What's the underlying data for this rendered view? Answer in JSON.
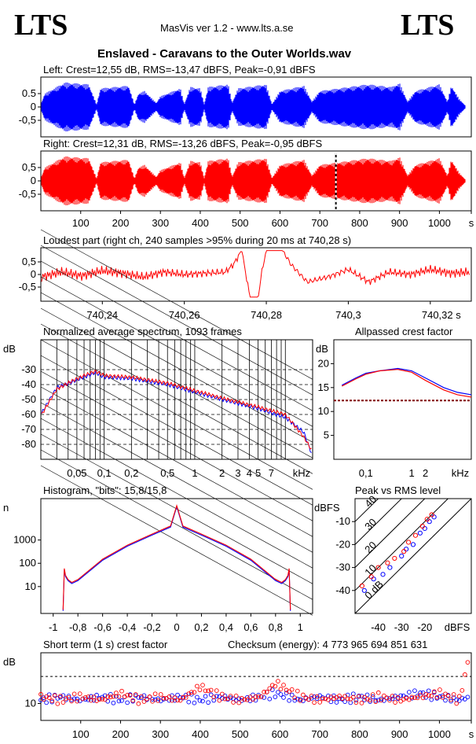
{
  "header": {
    "logo_left": "LTS",
    "logo_right": "LTS",
    "app_version": "MasVis ver 1.2 - www.lts.a.se",
    "file_title": "Enslaved - Caravans to the Outer Worlds.wav"
  },
  "colors": {
    "left": "#0000ff",
    "right": "#ff0000",
    "marker": "#000000"
  },
  "chart_data": [
    {
      "id": "left_waveform",
      "type": "area",
      "title": "Left: Crest=12,55 dB, RMS=-13,47 dBFS, Peak=-0,91 dBFS",
      "y_ticks": [
        "0.5",
        "0",
        "-0,5"
      ],
      "ylim": [
        -1,
        1
      ],
      "xlim": [
        0,
        1080
      ],
      "envelope_peak": [
        [
          0,
          0.1
        ],
        [
          10,
          0.5
        ],
        [
          60,
          0.92
        ],
        [
          120,
          0.85
        ],
        [
          140,
          0.1
        ],
        [
          150,
          0.7
        ],
        [
          220,
          0.8
        ],
        [
          235,
          0.1
        ],
        [
          245,
          0.5
        ],
        [
          260,
          0.6
        ],
        [
          290,
          0.15
        ],
        [
          300,
          0.4
        ],
        [
          350,
          0.7
        ],
        [
          360,
          0.1
        ],
        [
          375,
          0.75
        ],
        [
          400,
          0.7
        ],
        [
          410,
          0.1
        ],
        [
          420,
          0.75
        ],
        [
          470,
          0.85
        ],
        [
          480,
          0.15
        ],
        [
          495,
          0.7
        ],
        [
          565,
          0.85
        ],
        [
          580,
          0.1
        ],
        [
          600,
          0.6
        ],
        [
          660,
          0.8
        ],
        [
          680,
          0.2
        ],
        [
          700,
          0.6
        ],
        [
          820,
          0.85
        ],
        [
          880,
          0.75
        ],
        [
          900,
          0.9
        ],
        [
          920,
          0.2
        ],
        [
          940,
          0.6
        ],
        [
          1000,
          0.85
        ],
        [
          1020,
          0.2
        ],
        [
          1030,
          0.8
        ],
        [
          1050,
          0.3
        ],
        [
          1065,
          0.05
        ]
      ]
    },
    {
      "id": "right_waveform",
      "type": "area",
      "title": "Right: Crest=12,31 dB, RMS=-13,26 dBFS, Peak=-0,95 dBFS",
      "y_ticks": [
        "0,5",
        "0",
        "-0,5"
      ],
      "ylim": [
        -1,
        1
      ],
      "xlim": [
        0,
        1080
      ],
      "marker_x": 740.28,
      "x_ticks": [
        "100",
        "200",
        "300",
        "400",
        "500",
        "600",
        "700",
        "800",
        "900",
        "1000",
        "s"
      ],
      "envelope_peak": [
        [
          0,
          0.1
        ],
        [
          10,
          0.5
        ],
        [
          60,
          0.92
        ],
        [
          120,
          0.85
        ],
        [
          140,
          0.1
        ],
        [
          150,
          0.7
        ],
        [
          220,
          0.8
        ],
        [
          235,
          0.1
        ],
        [
          245,
          0.5
        ],
        [
          260,
          0.6
        ],
        [
          290,
          0.15
        ],
        [
          300,
          0.4
        ],
        [
          350,
          0.7
        ],
        [
          360,
          0.1
        ],
        [
          375,
          0.75
        ],
        [
          400,
          0.7
        ],
        [
          410,
          0.1
        ],
        [
          420,
          0.75
        ],
        [
          470,
          0.85
        ],
        [
          480,
          0.15
        ],
        [
          495,
          0.7
        ],
        [
          565,
          0.85
        ],
        [
          580,
          0.1
        ],
        [
          600,
          0.6
        ],
        [
          660,
          0.8
        ],
        [
          680,
          0.2
        ],
        [
          700,
          0.6
        ],
        [
          820,
          0.85
        ],
        [
          880,
          0.75
        ],
        [
          900,
          0.9
        ],
        [
          920,
          0.2
        ],
        [
          940,
          0.6
        ],
        [
          1000,
          0.85
        ],
        [
          1020,
          0.2
        ],
        [
          1030,
          0.8
        ],
        [
          1050,
          0.3
        ],
        [
          1065,
          0.05
        ]
      ]
    },
    {
      "id": "loudest_part",
      "type": "line",
      "title": "Loudest part (right ch, 240 samples >95% during 20 ms at 740,28 s)",
      "y_ticks": [
        "0,5",
        "0",
        "-0,5"
      ],
      "ylim": [
        -1,
        1
      ],
      "xlim": [
        740.225,
        740.33
      ],
      "x_ticks": [
        "740,24",
        "740,26",
        "740,28",
        "740,3",
        "740,32 s"
      ],
      "x": [
        740.225,
        740.23,
        740.235,
        740.24,
        740.245,
        740.25,
        740.255,
        740.26,
        740.265,
        740.27,
        740.272,
        740.274,
        740.276,
        740.278,
        740.279,
        740.28,
        740.282,
        740.284,
        740.286,
        740.29,
        740.295,
        740.3,
        740.305,
        740.31,
        740.315,
        740.32,
        740.325,
        740.33
      ],
      "values": [
        -0.1,
        0.1,
        -0.05,
        0.15,
        0.05,
        -0.1,
        0.1,
        0.0,
        0.05,
        0.1,
        0.4,
        0.95,
        -0.9,
        -0.9,
        0.2,
        0.95,
        0.95,
        0.95,
        0.4,
        -0.3,
        -0.1,
        0.2,
        -0.3,
        0.1,
        0.0,
        0.2,
        0.05,
        0.1
      ]
    },
    {
      "id": "spectrum",
      "type": "line",
      "title": "Normalized average spectrum, 1093 frames",
      "ylabel": "dB",
      "xlabel": "kHz",
      "x_scale": "log",
      "ylim": [
        -90,
        -10
      ],
      "y_ticks": [
        "-30",
        "-40",
        "-50",
        "-60",
        "-70",
        "-80"
      ],
      "x_ticks": [
        "0,05",
        "0,1",
        "0,2",
        "0,5",
        "1",
        "2",
        "3",
        "4",
        "5",
        "7",
        "kHz"
      ],
      "x": [
        0.02,
        0.03,
        0.05,
        0.08,
        0.1,
        0.2,
        0.5,
        1,
        2,
        5,
        10,
        16,
        20
      ],
      "series": [
        {
          "values": [
            -60,
            -42,
            -37,
            -32,
            -35,
            -36,
            -40,
            -45,
            -50,
            -56,
            -62,
            -72,
            -88
          ]
        },
        {
          "values": [
            -61,
            -43,
            -36,
            -31,
            -34,
            -35,
            -39,
            -44,
            -49,
            -55,
            -60,
            -75,
            -85
          ]
        }
      ]
    },
    {
      "id": "allpassed_crest",
      "type": "line",
      "title": "Allpassed crest factor",
      "ylabel": "dB",
      "xlabel": "kHz",
      "x_scale": "log",
      "ylim": [
        0,
        25
      ],
      "y_ticks": [
        "20",
        "15",
        "10",
        "5"
      ],
      "x_ticks": [
        "0,1",
        "1",
        "2",
        "kHz"
      ],
      "x": [
        0.03,
        0.06,
        0.1,
        0.2,
        0.5,
        1,
        2,
        5,
        10,
        20
      ],
      "reference_value": 12.3,
      "series": [
        {
          "values": [
            15.5,
            17,
            18,
            18.5,
            19,
            18.5,
            17,
            15,
            14,
            13.5
          ]
        },
        {
          "values": [
            15.3,
            16.8,
            17.8,
            18.5,
            18.8,
            18.2,
            16.5,
            14.5,
            13.5,
            13
          ]
        }
      ]
    },
    {
      "id": "histogram",
      "type": "line",
      "title": "Histogram, \"bits\": 15,8/15,8",
      "ylabel": "n",
      "y_scale": "log",
      "xlim": [
        -1.1,
        1.1
      ],
      "y_ticks": [
        "1000",
        "100",
        "10"
      ],
      "x_ticks": [
        "-1",
        "-0,8",
        "-0,6",
        "-0,4",
        "-0,2",
        "0",
        "0,2",
        "0,4",
        "0,6",
        "0,8",
        "1"
      ],
      "x": [
        -0.92,
        -0.91,
        -0.9,
        -0.88,
        -0.85,
        -0.8,
        -0.6,
        -0.4,
        -0.2,
        -0.05,
        0,
        0.05,
        0.2,
        0.4,
        0.6,
        0.8,
        0.85,
        0.88,
        0.9,
        0.91,
        0.92
      ],
      "values": [
        1,
        60,
        30,
        20,
        15,
        20,
        150,
        600,
        1800,
        4000,
        30000,
        4000,
        1800,
        600,
        150,
        20,
        15,
        20,
        30,
        60,
        1
      ]
    },
    {
      "id": "peak_vs_rms",
      "type": "scatter",
      "title": "Peak vs RMS level",
      "ylabel": "dBFS",
      "xlabel": "dBFS",
      "xlim": [
        -50,
        0
      ],
      "ylim": [
        -50,
        0
      ],
      "y_ticks": [
        "-10",
        "-20",
        "-30",
        "-40"
      ],
      "x_ticks": [
        "-40",
        "-30",
        "-20",
        "dBFS"
      ],
      "diag_labels": [
        "40",
        "30",
        "20",
        "10",
        "0 dB"
      ],
      "series": [
        {
          "points": [
            [
              -46,
              -40
            ],
            [
              -42,
              -35
            ],
            [
              -38,
              -33
            ],
            [
              -35,
              -30
            ],
            [
              -30,
              -25
            ],
            [
              -28,
              -22
            ],
            [
              -25,
              -20
            ],
            [
              -22,
              -15
            ],
            [
              -20,
              -13
            ],
            [
              -18,
              -10
            ],
            [
              -16,
              -8
            ]
          ]
        },
        {
          "points": [
            [
              -47,
              -38
            ],
            [
              -43,
              -34
            ],
            [
              -40,
              -30
            ],
            [
              -36,
              -28
            ],
            [
              -33,
              -26
            ],
            [
              -29,
              -23
            ],
            [
              -27,
              -19
            ],
            [
              -24,
              -16
            ],
            [
              -21,
              -12
            ],
            [
              -19,
              -9
            ],
            [
              -17,
              -7
            ]
          ]
        }
      ]
    },
    {
      "id": "short_term_crest",
      "type": "scatter",
      "title": "Short term (1 s) crest factor",
      "checksum": "Checksum (energy):  4 773 965 694 851 631",
      "ylabel": "dB",
      "ylim": [
        5,
        25
      ],
      "xlim": [
        0,
        1080
      ],
      "reference_value": 18,
      "y_ticks": [
        "10"
      ],
      "x_ticks": [
        "100",
        "200",
        "300",
        "400",
        "500",
        "600",
        "700",
        "800",
        "900",
        "1000",
        "s"
      ],
      "x": [
        0,
        50,
        100,
        150,
        200,
        250,
        300,
        350,
        400,
        450,
        500,
        550,
        590,
        650,
        700,
        750,
        800,
        850,
        900,
        950,
        1000,
        1050,
        1075
      ],
      "series": [
        {
          "values": [
            11,
            12,
            11,
            12,
            11,
            12,
            11,
            12,
            11,
            12,
            11,
            12,
            13,
            11,
            12,
            11,
            12,
            11,
            12,
            13,
            12,
            11,
            12
          ]
        },
        {
          "values": [
            12,
            11,
            12,
            11,
            13,
            11,
            12,
            11,
            15,
            12,
            11,
            12,
            16,
            12,
            11,
            12,
            11,
            12,
            11,
            12,
            13,
            11,
            24
          ]
        }
      ]
    }
  ]
}
